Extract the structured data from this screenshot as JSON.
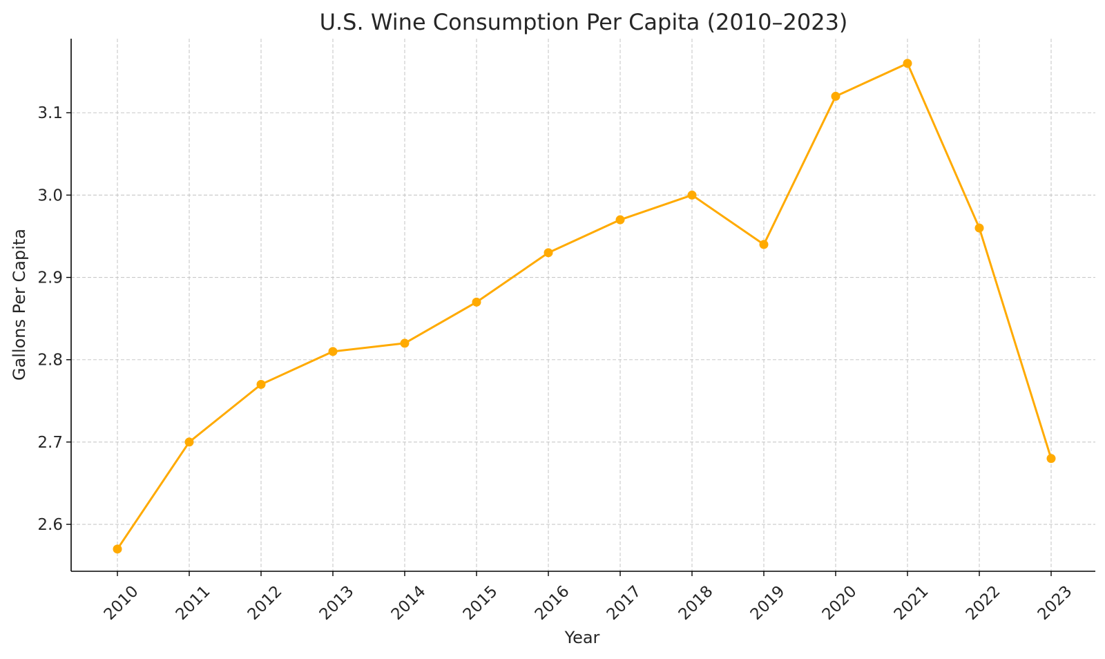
{
  "chart_data": {
    "type": "line",
    "title": "U.S. Wine Consumption Per Capita (2010–2023)",
    "xlabel": "Year",
    "ylabel": "Gallons Per Capita",
    "categories": [
      "2010",
      "2011",
      "2012",
      "2013",
      "2014",
      "2015",
      "2016",
      "2017",
      "2018",
      "2019",
      "2020",
      "2021",
      "2022",
      "2023"
    ],
    "series": [
      {
        "name": "Gallons Per Capita",
        "values": [
          2.57,
          2.7,
          2.77,
          2.81,
          2.82,
          2.87,
          2.93,
          2.97,
          3.0,
          2.94,
          3.12,
          3.16,
          2.96,
          2.68
        ],
        "color": "#FFAA00"
      }
    ],
    "ylim": [
      2.543,
      3.19
    ],
    "yticks": [
      2.6,
      2.7,
      2.8,
      2.9,
      3.0,
      3.1
    ],
    "ytick_labels": [
      "2.6",
      "2.7",
      "2.8",
      "2.9",
      "3.0",
      "3.1"
    ],
    "grid": true,
    "marker": "circle",
    "colors": {
      "line": "#FFAA00",
      "grid": "#c8c8c8",
      "text": "#262626",
      "axis": "#000000"
    }
  }
}
